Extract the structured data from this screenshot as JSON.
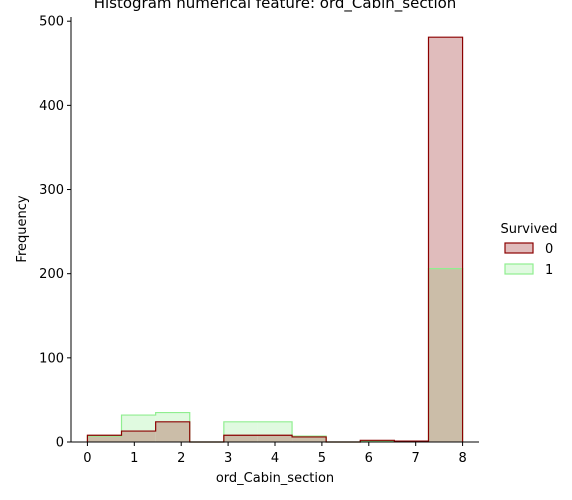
{
  "chart_data": {
    "type": "histogram",
    "title": "Histogram numerical feature: ord_Cabin_section",
    "xlabel": "ord_Cabin_section",
    "ylabel": "Frequency",
    "xlim": [
      -0.35,
      8.35
    ],
    "ylim": [
      0,
      505
    ],
    "xticks": [
      0,
      1,
      2,
      3,
      4,
      5,
      6,
      7,
      8
    ],
    "yticks": [
      0,
      100,
      200,
      300,
      400,
      500
    ],
    "bin_edges": [
      0.0,
      0.727,
      1.455,
      2.182,
      2.909,
      3.636,
      4.364,
      5.091,
      5.818,
      6.545,
      7.273,
      8.0
    ],
    "legend": {
      "title": "Survived",
      "position": "right"
    },
    "grid": false,
    "series": [
      {
        "name": "0",
        "fill": "#e0bcbc",
        "stroke": "#8b0000",
        "counts": [
          8,
          13,
          24,
          0,
          8,
          8,
          6,
          0,
          2,
          1,
          481
        ]
      },
      {
        "name": "1",
        "fill": "#e0fae0",
        "stroke": "#90ee90",
        "counts": [
          7,
          32,
          35,
          0,
          24,
          24,
          7,
          0,
          1,
          1,
          206
        ]
      }
    ],
    "overlap_fill": "#cbbda8"
  }
}
